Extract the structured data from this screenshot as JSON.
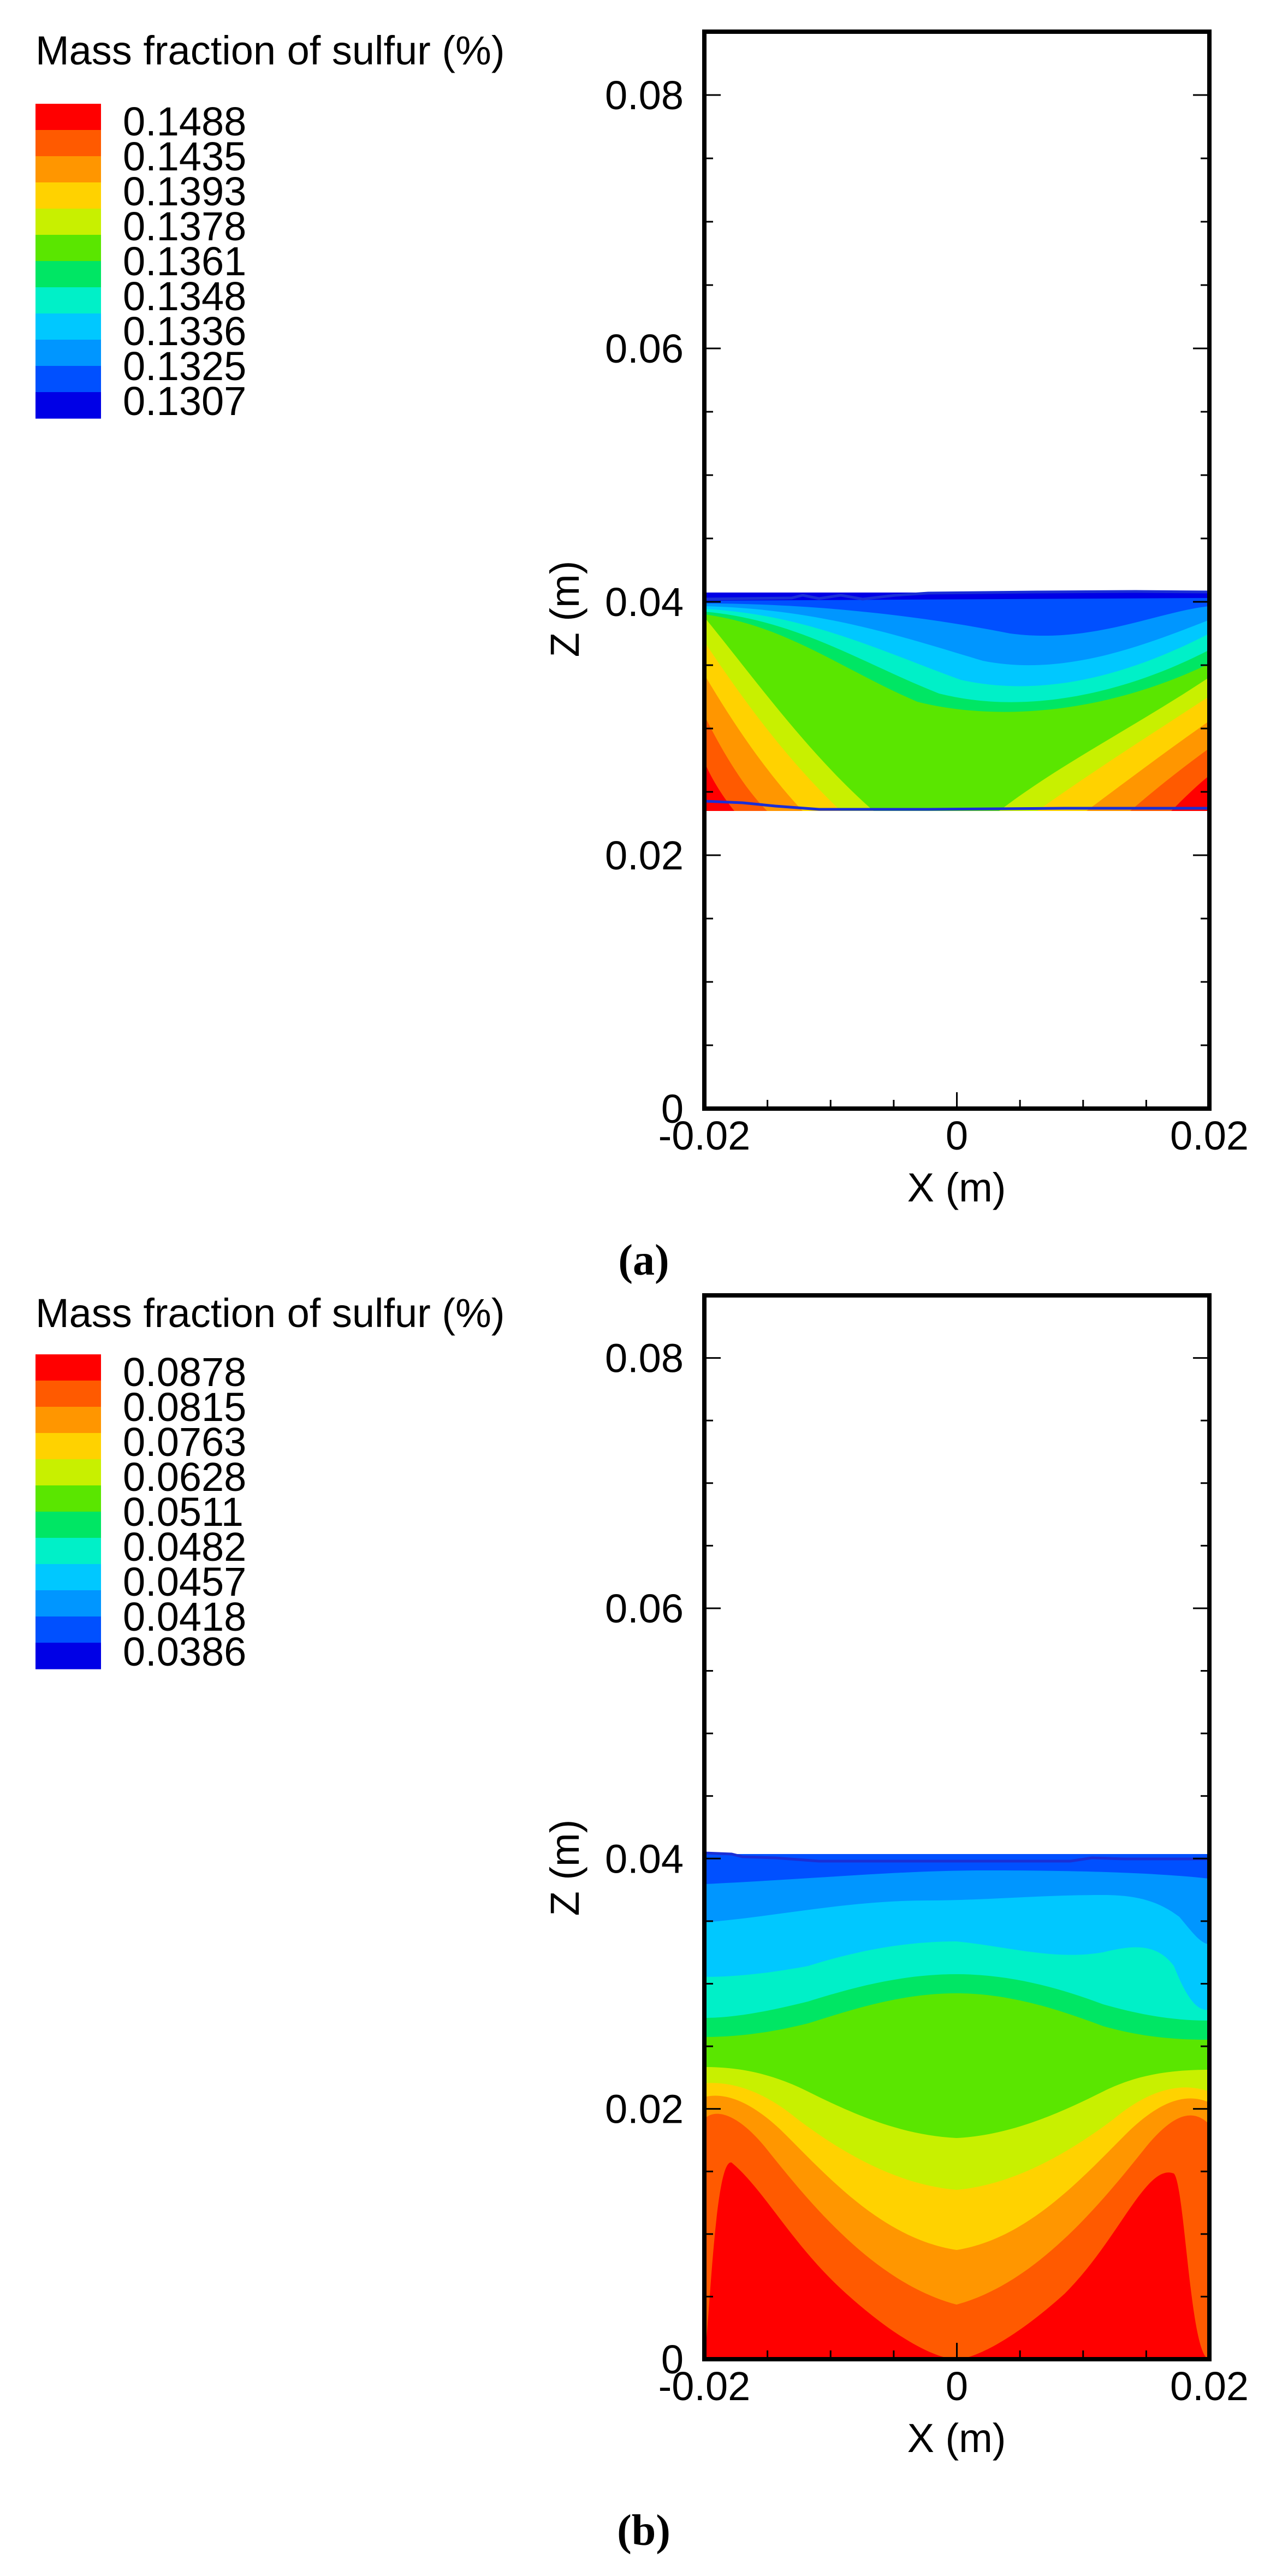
{
  "chart_data": [
    {
      "type": "contour",
      "panel_label": "(a)",
      "legend_title": "Mass fraction of sulfur (%)",
      "levels": [
        "0.1488",
        "0.1435",
        "0.1393",
        "0.1378",
        "0.1361",
        "0.1348",
        "0.1336",
        "0.1325",
        "0.1307"
      ],
      "level_colors": [
        "#ff0000",
        "#ff5a00",
        "#ff9600",
        "#ffd200",
        "#c8f000",
        "#5ae600",
        "#00e664",
        "#00f0c8",
        "#00c8ff",
        "#0096ff",
        "#0050ff",
        "#0000e6"
      ],
      "xlabel": "X (m)",
      "ylabel": "Z (m)",
      "xlim": [
        -0.02,
        0.02
      ],
      "ylim": [
        0,
        0.085
      ],
      "xticks": [
        "-0.02",
        "0",
        "0.02"
      ],
      "yticks": [
        "0",
        "0.02",
        "0.04",
        "0.06",
        "0.08"
      ],
      "region_z": [
        0.024,
        0.0405
      ],
      "grid": false
    },
    {
      "type": "contour",
      "panel_label": "(b)",
      "legend_title": "Mass fraction of sulfur (%)",
      "levels": [
        "0.0878",
        "0.0815",
        "0.0763",
        "0.0628",
        "0.0511",
        "0.0482",
        "0.0457",
        "0.0418",
        "0.0386"
      ],
      "level_colors": [
        "#ff0000",
        "#ff5a00",
        "#ff9600",
        "#ffd200",
        "#c8f000",
        "#5ae600",
        "#00e664",
        "#00f0c8",
        "#00c8ff",
        "#0096ff",
        "#0050ff",
        "#0000e6"
      ],
      "xlabel": "X (m)",
      "ylabel": "Z (m)",
      "xlim": [
        -0.02,
        0.02
      ],
      "ylim": [
        0,
        0.085
      ],
      "xticks": [
        "-0.02",
        "0",
        "0.02"
      ],
      "yticks": [
        "0",
        "0.02",
        "0.04",
        "0.06",
        "0.08"
      ],
      "region_z": [
        0,
        0.024
      ],
      "grid": false
    }
  ]
}
